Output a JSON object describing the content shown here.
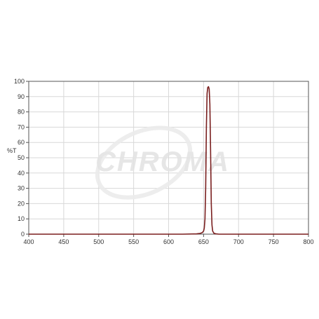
{
  "watermark": {
    "text": "CHROMA",
    "color": "#e4e4e4"
  },
  "chart_data": {
    "type": "line",
    "title": "",
    "xlabel": "",
    "ylabel": "%T",
    "xlim": [
      400,
      800
    ],
    "ylim": [
      0,
      100
    ],
    "x_ticks": [
      400,
      450,
      500,
      550,
      600,
      650,
      700,
      750,
      800
    ],
    "y_ticks": [
      0,
      10,
      20,
      30,
      40,
      50,
      60,
      70,
      80,
      90,
      100
    ],
    "grid": true,
    "legend": "none",
    "colors": {
      "line": "#7a1f1f",
      "grid": "#d8d8d8",
      "frame": "#555555"
    },
    "series": [
      {
        "x": [
          400,
          620,
          640,
          645,
          648,
          650,
          651,
          652,
          653,
          654,
          655,
          656,
          657,
          658,
          659,
          660,
          661,
          662,
          663,
          665,
          668,
          672,
          700,
          800
        ],
        "y": [
          0,
          0,
          0.2,
          0.5,
          1,
          2,
          4,
          10,
          30,
          70,
          92,
          96,
          96.5,
          95,
          85,
          55,
          20,
          6,
          2,
          0.5,
          0.2,
          0,
          0,
          0
        ]
      }
    ]
  }
}
